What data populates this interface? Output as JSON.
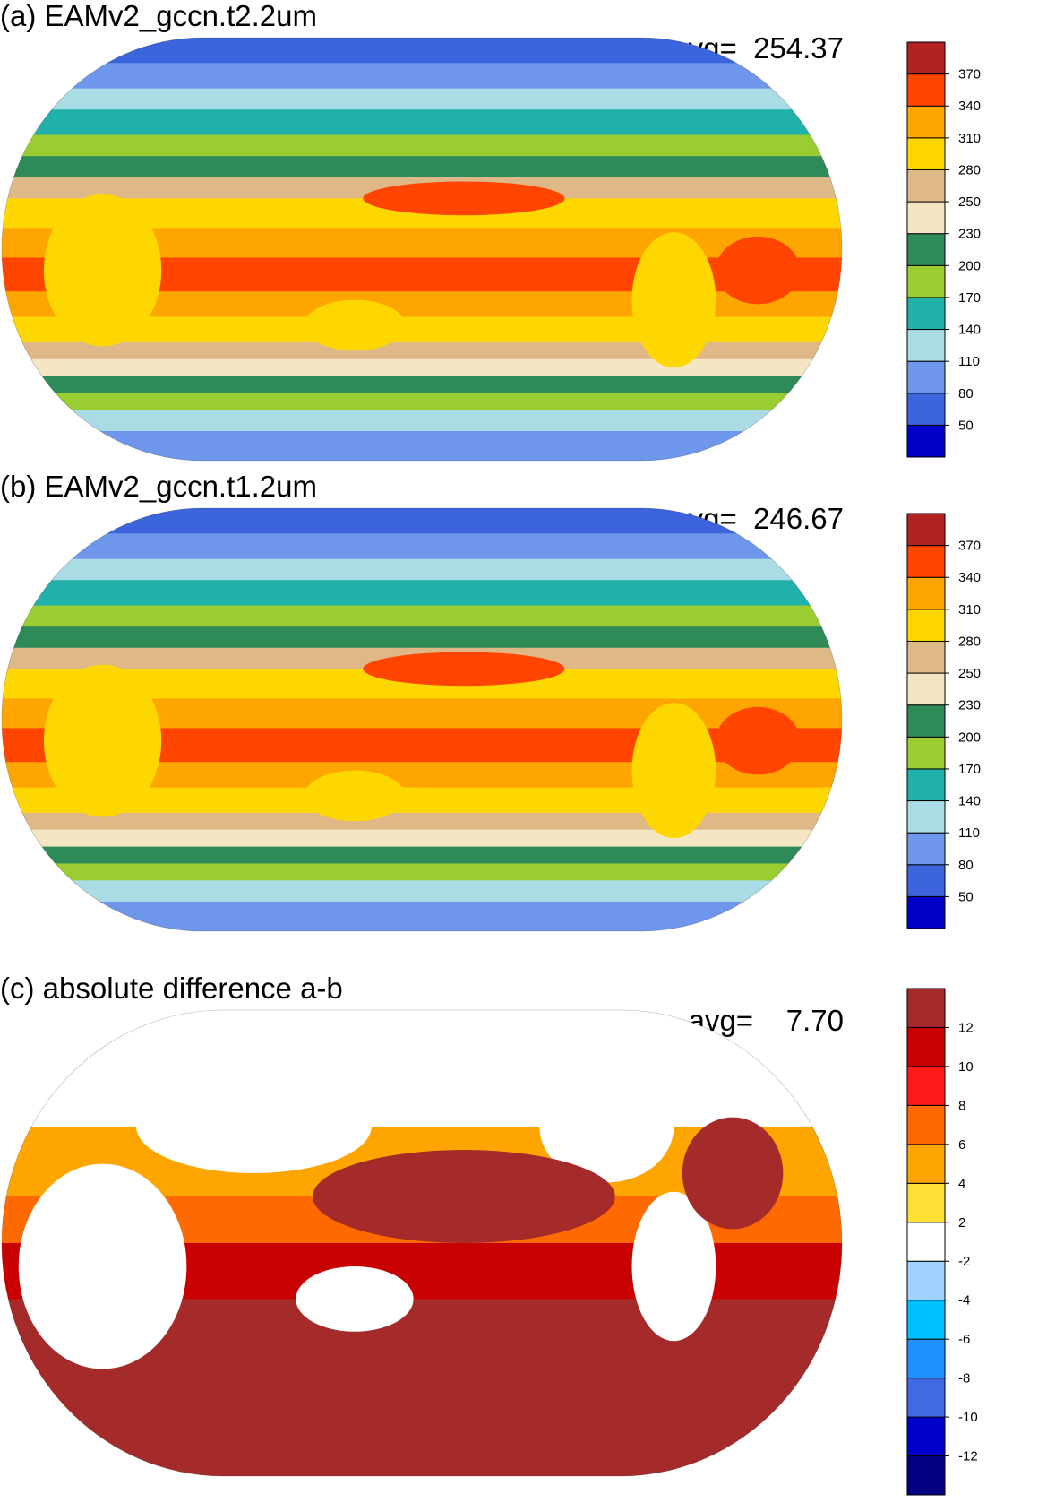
{
  "panels": [
    {
      "label": "(a) EAMv2_gccn.t2.2um",
      "avg_label": "avg=",
      "avg_value": "254.37",
      "colorbar": {
        "colors": [
          "#0000c8",
          "#3c64dc",
          "#6e96eb",
          "#aadce6",
          "#20b2aa",
          "#9acd32",
          "#2e8b57",
          "#f5e6c3",
          "#deb887",
          "#ffd700",
          "#ffa500",
          "#ff4500",
          "#b22222"
        ],
        "labels": [
          "50",
          "80",
          "110",
          "140",
          "170",
          "200",
          "230",
          "250",
          "280",
          "310",
          "340",
          "370"
        ]
      }
    },
    {
      "label": "(b) EAMv2_gccn.t1.2um",
      "avg_label": "avg=",
      "avg_value": "246.67",
      "colorbar": {
        "colors": [
          "#0000c8",
          "#3c64dc",
          "#6e96eb",
          "#aadce6",
          "#20b2aa",
          "#9acd32",
          "#2e8b57",
          "#f5e6c3",
          "#deb887",
          "#ffd700",
          "#ffa500",
          "#ff4500",
          "#b22222"
        ],
        "labels": [
          "50",
          "80",
          "110",
          "140",
          "170",
          "200",
          "230",
          "250",
          "280",
          "310",
          "340",
          "370"
        ]
      }
    },
    {
      "label": "(c) absolute difference a-b",
      "avg_label": "avg=",
      "avg_value": "7.70",
      "colorbar": {
        "colors": [
          "#000080",
          "#0000cd",
          "#4169e1",
          "#1e90ff",
          "#00bfff",
          "#a0d2ff",
          "#ffffff",
          "#ffe135",
          "#ffa500",
          "#ff6a00",
          "#ff1a1a",
          "#c80000",
          "#a52a2a"
        ],
        "labels": [
          "-12",
          "-10",
          "-8",
          "-6",
          "-4",
          "-2",
          "2",
          "4",
          "6",
          "8",
          "10",
          "12"
        ]
      }
    }
  ]
}
